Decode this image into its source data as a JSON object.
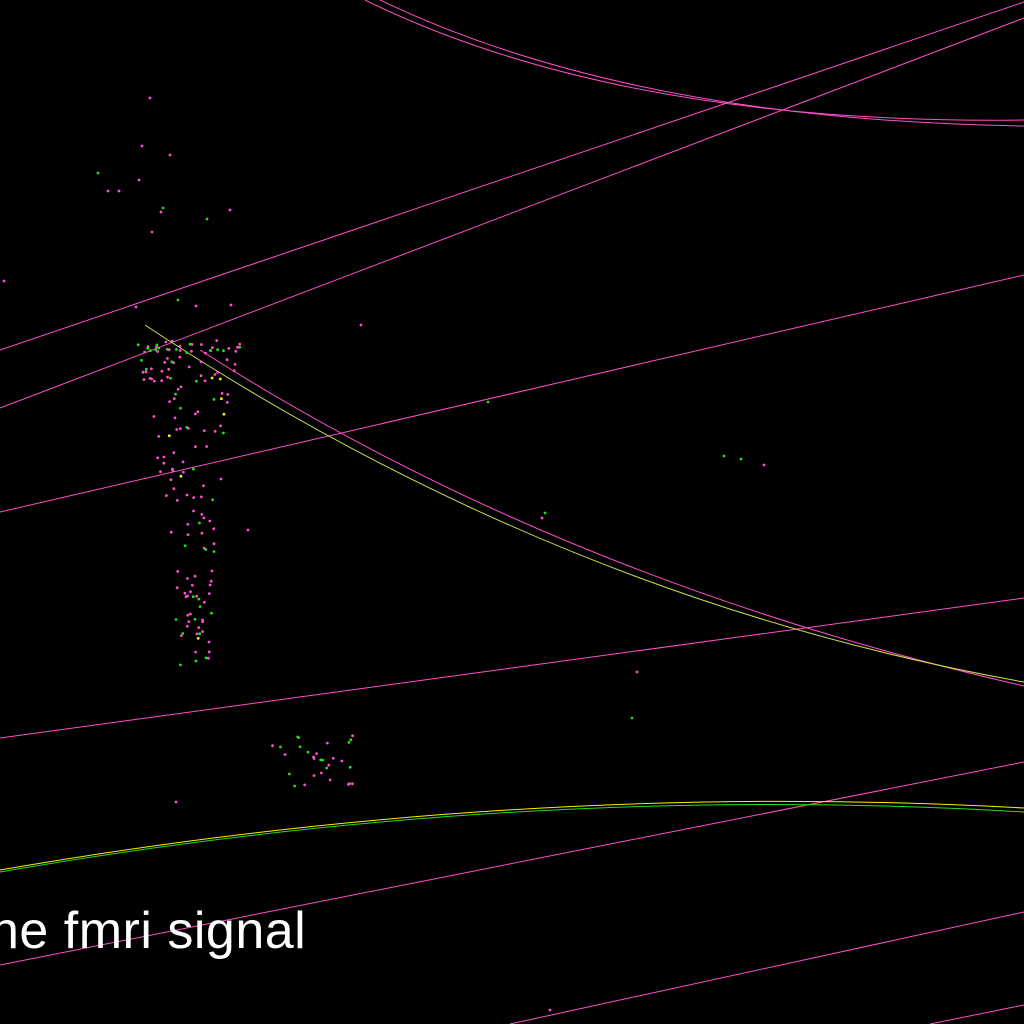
{
  "caption": "he fmri signal",
  "colors": {
    "background": "#000000",
    "magenta": "#ff4fc8",
    "green": "#22dd22",
    "yellow": "#ffee00",
    "yellow_green": "#c8e04a",
    "caption": "#ffffff"
  }
}
